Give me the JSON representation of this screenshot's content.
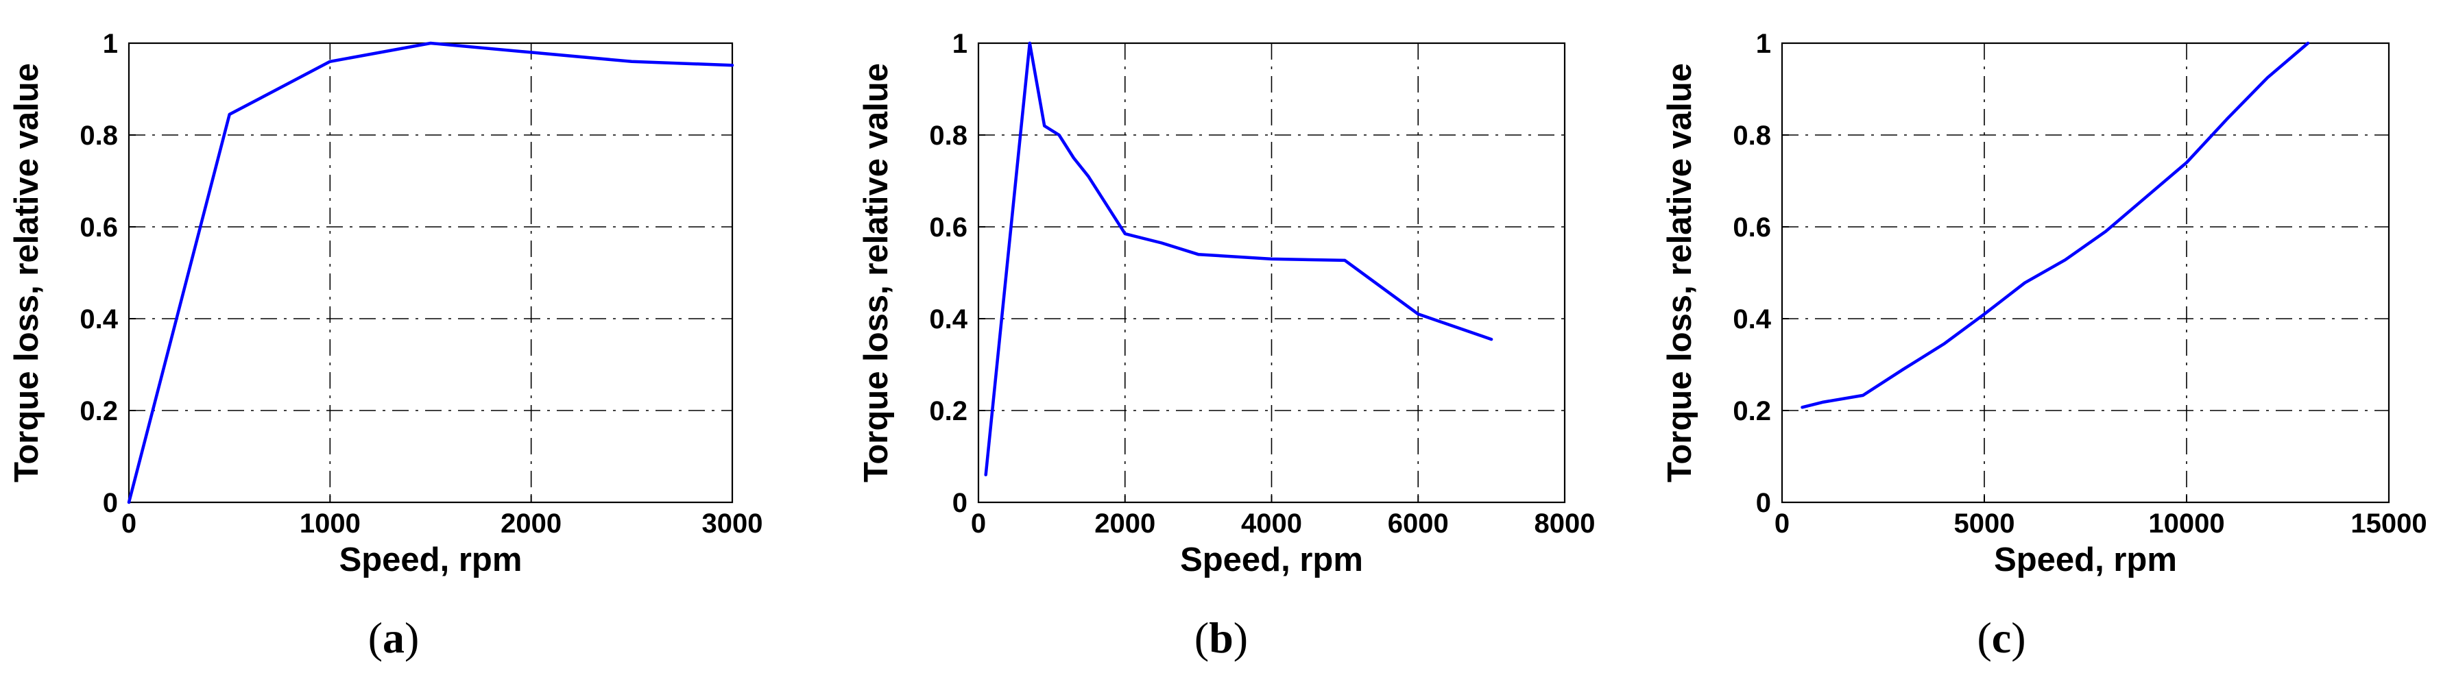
{
  "chart_data": [
    {
      "type": "line",
      "panel": "a",
      "caption": "(a)",
      "caption_letter": "a",
      "xlabel": "Speed, rpm",
      "ylabel": "Torque loss, relative value",
      "xlim": [
        0,
        3000
      ],
      "ylim": [
        0,
        1
      ],
      "xticks": [
        0,
        1000,
        2000,
        3000
      ],
      "yticks": [
        0,
        0.2,
        0.4,
        0.6,
        0.8,
        1
      ],
      "xtick_labels": [
        "0",
        "1000",
        "2000",
        "3000"
      ],
      "ytick_labels": [
        "0",
        "0.2",
        "0.4",
        "0.6",
        "0.8",
        "1"
      ],
      "grid": true,
      "series": [
        {
          "name": "Torque loss",
          "color": "#0000ff",
          "x": [
            0,
            500,
            1000,
            1500,
            2000,
            2500,
            3000
          ],
          "y": [
            0,
            0.845,
            0.96,
            1.0,
            0.98,
            0.96,
            0.952
          ]
        }
      ]
    },
    {
      "type": "line",
      "panel": "b",
      "caption": "(b)",
      "caption_letter": "b",
      "xlabel": "Speed, rpm",
      "ylabel": "Torque loss, relative value",
      "xlim": [
        0,
        8000
      ],
      "ylim": [
        0,
        1
      ],
      "xticks": [
        0,
        2000,
        4000,
        6000,
        8000
      ],
      "yticks": [
        0,
        0.2,
        0.4,
        0.6,
        0.8,
        1
      ],
      "xtick_labels": [
        "0",
        "2000",
        "4000",
        "6000",
        "8000"
      ],
      "ytick_labels": [
        "0",
        "0.2",
        "0.4",
        "0.6",
        "0.8",
        "1"
      ],
      "grid": true,
      "series": [
        {
          "name": "Torque loss",
          "color": "#0000ff",
          "x": [
            100,
            700,
            900,
            1100,
            1300,
            1500,
            2000,
            2500,
            3000,
            4000,
            5000,
            6000,
            7000
          ],
          "y": [
            0.06,
            1.0,
            0.82,
            0.8,
            0.75,
            0.71,
            0.585,
            0.565,
            0.54,
            0.53,
            0.527,
            0.41,
            0.355
          ]
        }
      ]
    },
    {
      "type": "line",
      "panel": "c",
      "caption": "(c)",
      "caption_letter": "c",
      "xlabel": "Speed, rpm",
      "ylabel": "Torque loss, relative value",
      "xlim": [
        0,
        15000
      ],
      "ylim": [
        0,
        1
      ],
      "xticks": [
        0,
        5000,
        10000,
        15000
      ],
      "yticks": [
        0,
        0.2,
        0.4,
        0.6,
        0.8,
        1
      ],
      "xtick_labels": [
        "0",
        "5000",
        "10000",
        "15000"
      ],
      "ytick_labels": [
        "0",
        "0.2",
        "0.4",
        "0.6",
        "0.8",
        "1"
      ],
      "grid": true,
      "series": [
        {
          "name": "Torque loss",
          "color": "#0000ff",
          "x": [
            500,
            1000,
            2000,
            3000,
            4000,
            5000,
            6000,
            7000,
            8000,
            9000,
            10000,
            11000,
            12000,
            13000
          ],
          "y": [
            0.207,
            0.218,
            0.233,
            0.29,
            0.345,
            0.41,
            0.478,
            0.528,
            0.59,
            0.665,
            0.74,
            0.835,
            0.925,
            1.0
          ]
        }
      ]
    }
  ]
}
